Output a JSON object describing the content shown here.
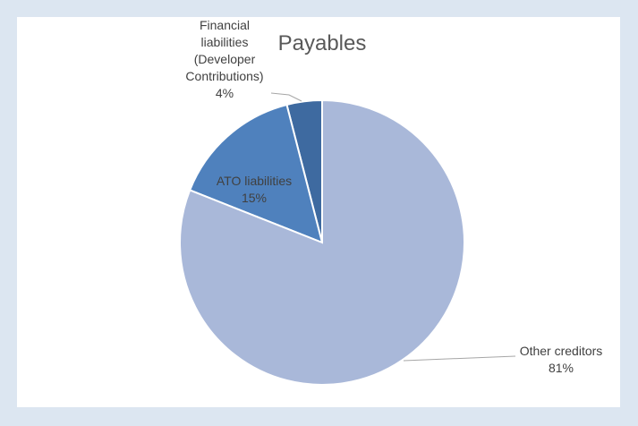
{
  "chart_data": {
    "type": "pie",
    "title": "Payables",
    "slices": [
      {
        "label_lines": [
          "Financial",
          "liabilities",
          "(Developer",
          "Contributions)"
        ],
        "percent_label": "4%",
        "value": 4,
        "color": "#3e6aa0"
      },
      {
        "label_lines": [
          "ATO liabilities"
        ],
        "percent_label": "15%",
        "value": 15,
        "color": "#4f81bd"
      },
      {
        "label_lines": [
          "Other creditors"
        ],
        "percent_label": "81%",
        "value": 81,
        "color": "#a9b8d9"
      }
    ],
    "legend": "none"
  },
  "colors": {
    "background": "#dce6f1",
    "chart_area": "#ffffff",
    "leader_line": "#a6a6a6",
    "slice_border": "#ffffff"
  }
}
